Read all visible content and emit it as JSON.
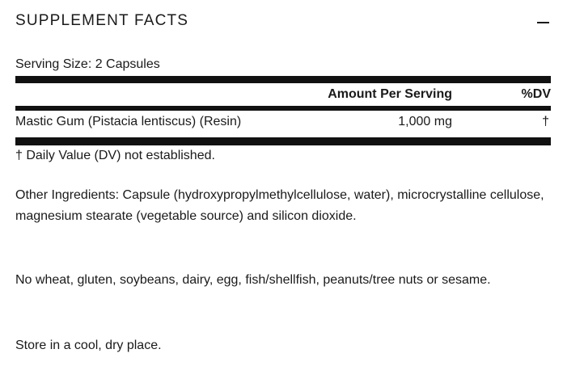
{
  "header": {
    "title": "SUPPLEMENT FACTS",
    "toggle_icon": "minus-icon"
  },
  "serving_size": "Serving Size: 2 Capsules",
  "table": {
    "columns": [
      "Amount Per Serving",
      "%DV"
    ],
    "rows": [
      {
        "name": "Mastic Gum (Pistacia lentiscus) (Resin)",
        "amount": "1,000 mg",
        "dv": "†"
      }
    ]
  },
  "footnote": "† Daily Value (DV) not established.",
  "other_ingredients": "Other Ingredients: Capsule (hydroxypropylmethylcellulose, water), microcrystalline cellulose, magnesium stearate (vegetable source) and silicon dioxide.",
  "allergens": "No wheat, gluten, soybeans, dairy, egg, fish/shellfish, peanuts/tree nuts or sesame.",
  "storage": "Store in a cool, dry place."
}
